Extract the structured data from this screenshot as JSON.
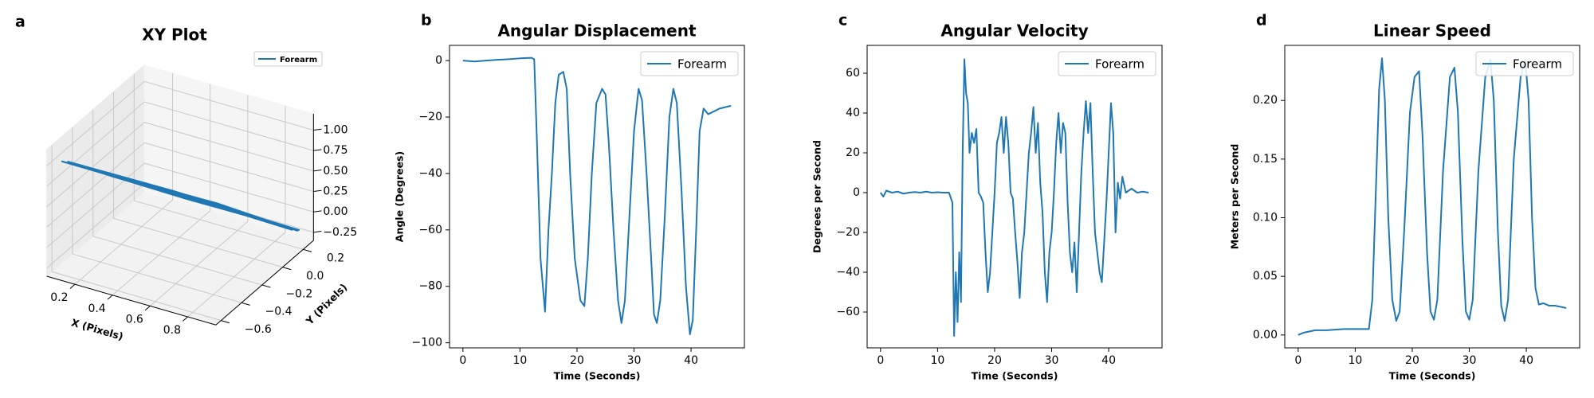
{
  "chart_data": [
    {
      "type": "line3d",
      "panel": "a",
      "title": "XY Plot",
      "xlabel": "X (Pixels)",
      "ylabel": "Y (Pixels)",
      "legend": "upper right",
      "xlim": [
        0.05,
        0.95
      ],
      "ylim": [
        -0.65,
        0.3
      ],
      "zlim": [
        -0.35,
        1.2
      ],
      "xticks": [
        {
          "value": 0.2,
          "label": "0.2"
        },
        {
          "value": 0.4,
          "label": "0.4"
        },
        {
          "value": 0.6,
          "label": "0.6"
        },
        {
          "value": 0.8,
          "label": "0.8"
        }
      ],
      "yticks": [
        {
          "value": -0.6,
          "label": "−0.6"
        },
        {
          "value": -0.4,
          "label": "−0.4"
        },
        {
          "value": -0.2,
          "label": "−0.2"
        },
        {
          "value": 0,
          "label": "0.0"
        },
        {
          "value": 0.2,
          "label": "0.2"
        }
      ],
      "zticks": [
        {
          "value": -0.25,
          "label": "−0.25"
        },
        {
          "value": 0,
          "label": "0.00"
        },
        {
          "value": 0.25,
          "label": "0.25"
        },
        {
          "value": 0.5,
          "label": "0.50"
        },
        {
          "value": 0.75,
          "label": "0.75"
        },
        {
          "value": 1,
          "label": "1.00"
        }
      ],
      "series": [
        {
          "name": "Forearm",
          "color": "#1f77b4",
          "x": [
            0.08,
            0.3,
            0.55,
            0.9,
            0.7,
            0.4,
            0.06,
            0.35,
            0.65,
            0.88,
            0.6,
            0.25,
            0.07,
            0.45,
            0.89,
            0.5,
            0.1,
            0.55,
            0.87,
            0.3,
            0.08,
            0.6,
            0.9
          ],
          "y": [
            -0.5,
            -0.3,
            -0.08,
            0.25,
            0.08,
            -0.2,
            -0.52,
            -0.26,
            0.02,
            0.22,
            -0.02,
            -0.36,
            -0.48,
            -0.14,
            0.26,
            -0.12,
            -0.47,
            -0.05,
            0.2,
            -0.3,
            -0.5,
            0.0,
            0.24
          ],
          "z": [
            0.9,
            0.6,
            0.3,
            -0.2,
            0.05,
            0.45,
            0.92,
            0.55,
            0.15,
            -0.18,
            0.2,
            0.68,
            0.88,
            0.4,
            -0.22,
            0.32,
            0.85,
            0.25,
            -0.15,
            0.62,
            0.9,
            0.2,
            -0.2
          ]
        }
      ]
    },
    {
      "type": "line",
      "panel": "b",
      "title": "Angular Displacement",
      "xlabel": "Time (Seconds)",
      "ylabel": "Angle (Degrees)",
      "legend": "upper right",
      "xlim": [
        -2.35,
        49.35
      ],
      "ylim": [
        -101.8,
        5.4
      ],
      "xticks": [
        0,
        10,
        20,
        30,
        40
      ],
      "yticks": [
        {
          "value": -100,
          "label": "−100"
        },
        {
          "value": -80,
          "label": "−80"
        },
        {
          "value": -60,
          "label": "−60"
        },
        {
          "value": -40,
          "label": "−40"
        },
        {
          "value": -20,
          "label": "−20"
        },
        0
      ],
      "x": [
        0,
        2,
        4,
        6,
        8,
        10,
        12,
        12.5,
        13,
        13.6,
        14.4,
        15,
        15.6,
        16.2,
        16.8,
        17.6,
        18.2,
        18.8,
        19.6,
        20.6,
        21.3,
        21.9,
        22.6,
        23.4,
        24.4,
        25,
        25.6,
        26.4,
        27.2,
        27.8,
        28.4,
        29.2,
        30,
        30.8,
        31.4,
        32.2,
        33,
        33.5,
        34,
        34.6,
        35.4,
        36.2,
        36.9,
        37.5,
        38.3,
        39.1,
        39.8,
        40.3,
        40.9,
        41.5,
        42.2,
        43,
        44,
        45,
        46,
        47
      ],
      "series": [
        {
          "name": "Forearm",
          "color": "#1f77b4",
          "values": [
            0,
            -0.3,
            0,
            0.3,
            0.5,
            0.8,
            1,
            0.5,
            -30,
            -70,
            -89,
            -60,
            -40,
            -15,
            -5,
            -4,
            -10,
            -40,
            -70,
            -85,
            -87,
            -70,
            -40,
            -15,
            -10,
            -12,
            -30,
            -60,
            -85,
            -93,
            -85,
            -55,
            -25,
            -10,
            -14,
            -40,
            -70,
            -90,
            -93,
            -85,
            -55,
            -20,
            -10,
            -15,
            -45,
            -80,
            -97,
            -92,
            -60,
            -25,
            -17,
            -19,
            -18,
            -17,
            -16.5,
            -16
          ]
        }
      ]
    },
    {
      "type": "line",
      "panel": "c",
      "title": "Angular Velocity",
      "xlabel": "Time (Seconds)",
      "ylabel": "Degrees per Second",
      "legend": "upper right",
      "xlim": [
        -2.35,
        49.35
      ],
      "ylim": [
        -78,
        74
      ],
      "xticks": [
        0,
        10,
        20,
        30,
        40
      ],
      "yticks": [
        {
          "value": -60,
          "label": "−60"
        },
        {
          "value": -40,
          "label": "−40"
        },
        {
          "value": -20,
          "label": "−20"
        },
        0,
        20,
        40,
        60
      ],
      "x": [
        0,
        0.5,
        1,
        2,
        3,
        4,
        5,
        6,
        7,
        8,
        9,
        10,
        11,
        12,
        12.6,
        12.9,
        13.2,
        13.5,
        13.8,
        14.1,
        14.4,
        14.7,
        15,
        15.3,
        15.6,
        16,
        16.4,
        16.8,
        17.2,
        17.6,
        18,
        18.4,
        18.8,
        19.2,
        19.6,
        20,
        20.4,
        20.8,
        21.2,
        21.6,
        22,
        22.4,
        22.8,
        23.2,
        23.6,
        24,
        24.4,
        24.8,
        25.2,
        25.6,
        26,
        26.4,
        26.8,
        27.2,
        27.6,
        28,
        28.4,
        28.8,
        29.2,
        29.6,
        30,
        30.4,
        30.8,
        31.2,
        31.6,
        32,
        32.4,
        32.8,
        33.2,
        33.6,
        34,
        34.4,
        34.8,
        35.2,
        35.6,
        36,
        36.4,
        36.8,
        37.2,
        37.6,
        38,
        38.4,
        38.8,
        39.2,
        39.6,
        40,
        40.4,
        40.8,
        41.2,
        41.6,
        42,
        42.4,
        43,
        44,
        45,
        46,
        47
      ],
      "series": [
        {
          "name": "Forearm",
          "color": "#1f77b4",
          "values": [
            0,
            -2,
            1,
            0,
            0.5,
            -0.5,
            0,
            0.3,
            0,
            0.5,
            0,
            0.2,
            0,
            0,
            -5,
            -72,
            -40,
            -65,
            -30,
            -55,
            20,
            67,
            50,
            45,
            20,
            30,
            25,
            32,
            0,
            -2,
            -5,
            -30,
            -50,
            -40,
            -20,
            0,
            25,
            30,
            38,
            20,
            38,
            25,
            0,
            -3,
            -20,
            -35,
            -53,
            -30,
            -20,
            0,
            20,
            30,
            43,
            20,
            35,
            5,
            -10,
            -40,
            -55,
            -30,
            -20,
            0,
            25,
            40,
            20,
            35,
            30,
            -5,
            -30,
            -40,
            -25,
            -50,
            -20,
            10,
            30,
            46,
            30,
            45,
            10,
            -20,
            -30,
            -40,
            -45,
            -25,
            -5,
            20,
            45,
            30,
            -20,
            5,
            -3,
            8,
            0,
            2,
            0,
            0.5,
            0
          ]
        }
      ]
    },
    {
      "type": "line",
      "panel": "d",
      "title": "Linear Speed",
      "xlabel": "Time (Seconds)",
      "ylabel": "Meters per Second",
      "legend": "upper right",
      "xlim": [
        -2.35,
        49.35
      ],
      "ylim": [
        -0.011,
        0.247
      ],
      "xticks": [
        0,
        10,
        20,
        30,
        40
      ],
      "yticks": [
        {
          "value": 0,
          "label": "0.00"
        },
        {
          "value": 0.05,
          "label": "0.05"
        },
        {
          "value": 0.1,
          "label": "0.10"
        },
        {
          "value": 0.15,
          "label": "0.15"
        },
        {
          "value": 0.2,
          "label": "0.20"
        }
      ],
      "x": [
        0,
        1,
        3,
        5,
        8,
        11,
        12.4,
        13,
        13.6,
        14.2,
        14.7,
        15.2,
        15.8,
        16.5,
        17.2,
        17.8,
        18.6,
        19.6,
        20.4,
        21.2,
        21.8,
        22.6,
        23.2,
        23.8,
        24.4,
        25.4,
        26.6,
        27.4,
        28,
        28.8,
        29.4,
        30,
        30.6,
        31.6,
        32.8,
        33.7,
        34.3,
        35,
        35.6,
        36.2,
        36.8,
        37.8,
        39,
        39.8,
        40.4,
        41,
        41.6,
        42.2,
        43,
        44,
        45,
        46,
        47
      ],
      "series": [
        {
          "name": "Forearm",
          "color": "#1f77b4",
          "values": [
            0,
            0.002,
            0.004,
            0.004,
            0.005,
            0.005,
            0.005,
            0.03,
            0.12,
            0.21,
            0.236,
            0.2,
            0.1,
            0.03,
            0.012,
            0.02,
            0.09,
            0.19,
            0.22,
            0.225,
            0.17,
            0.07,
            0.02,
            0.013,
            0.03,
            0.14,
            0.22,
            0.228,
            0.19,
            0.08,
            0.02,
            0.013,
            0.03,
            0.14,
            0.22,
            0.235,
            0.2,
            0.09,
            0.025,
            0.012,
            0.03,
            0.15,
            0.22,
            0.235,
            0.2,
            0.1,
            0.04,
            0.026,
            0.027,
            0.025,
            0.025,
            0.024,
            0.023
          ]
        }
      ]
    }
  ]
}
